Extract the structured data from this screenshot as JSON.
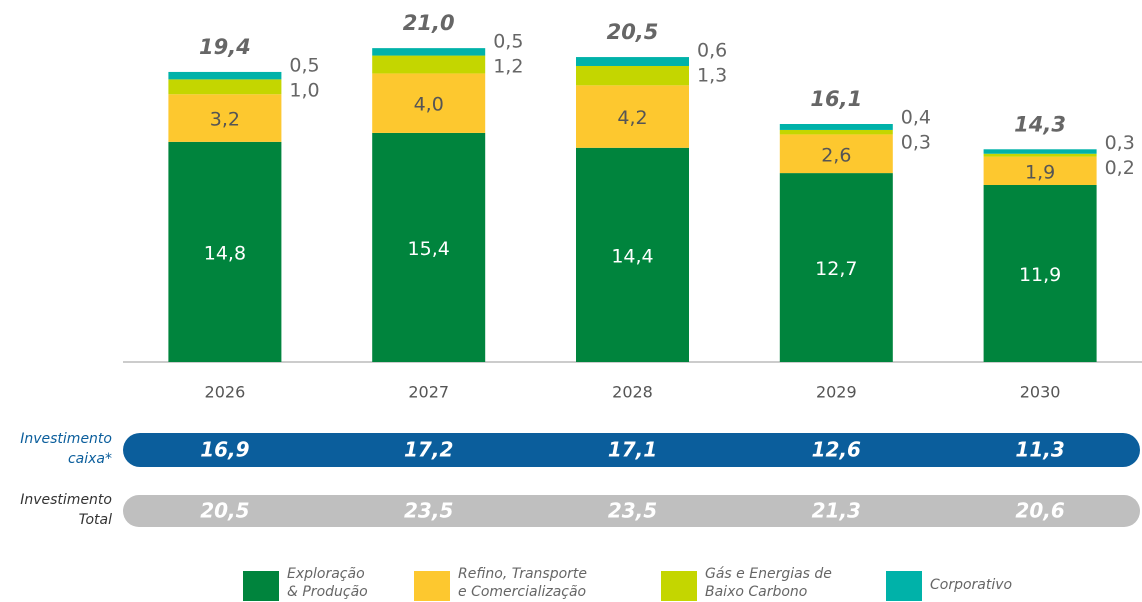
{
  "chart_data": {
    "type": "stacked_bar",
    "categories": [
      "2026",
      "2027",
      "2028",
      "2029",
      "2030"
    ],
    "ylim": [
      0,
      24
    ],
    "series": [
      {
        "name": "Exploração & Produção",
        "color": "#00843d",
        "label_position": "inside",
        "label_color": "#ffffff",
        "values": [
          14.8,
          15.4,
          14.4,
          12.7,
          11.9
        ],
        "value_labels": [
          "14,8",
          "15,4",
          "14,4",
          "12,7",
          "11,9"
        ]
      },
      {
        "name": "Refino, Transporte e Comercialização",
        "color": "#fdc82f",
        "label_position": "inside",
        "label_color": "#555555",
        "values": [
          3.2,
          4.0,
          4.2,
          2.6,
          1.9
        ],
        "value_labels": [
          "3,2",
          "4,0",
          "4,2",
          "2,6",
          "1,9"
        ]
      },
      {
        "name": "Gás e Energias de Baixo Carbono",
        "color": "#c4d600",
        "label_position": "right",
        "label_color": "#666666",
        "values": [
          1.0,
          1.2,
          1.3,
          0.3,
          0.2
        ],
        "value_labels": [
          "1,0",
          "1,2",
          "1,3",
          "0,3",
          "0,2"
        ]
      },
      {
        "name": "Corporativo",
        "color": "#00b2a9",
        "label_position": "right",
        "label_color": "#666666",
        "values": [
          0.5,
          0.5,
          0.6,
          0.4,
          0.3
        ],
        "value_labels": [
          "0,5",
          "0,5",
          "0,6",
          "0,4",
          "0,3"
        ]
      }
    ],
    "totals": [
      19.4,
      21.0,
      20.5,
      16.1,
      14.3
    ],
    "total_labels": [
      "19,4",
      "21,0",
      "20,5",
      "16,1",
      "14,3"
    ],
    "rows": [
      {
        "label": "Investimento caixa*",
        "color": "#0b5e9c",
        "label_color": "#0b5e9c",
        "values": [
          16.9,
          17.2,
          17.1,
          12.6,
          11.3
        ],
        "value_labels": [
          "16,9",
          "17,2",
          "17,1",
          "12,6",
          "11,3"
        ]
      },
      {
        "label": "Investimento Total",
        "color": "#bfbfbf",
        "label_color": "#333333",
        "values": [
          20.5,
          23.5,
          23.5,
          21.3,
          20.6
        ],
        "value_labels": [
          "20,5",
          "23,5",
          "23,5",
          "21,3",
          "20,6"
        ]
      }
    ]
  }
}
